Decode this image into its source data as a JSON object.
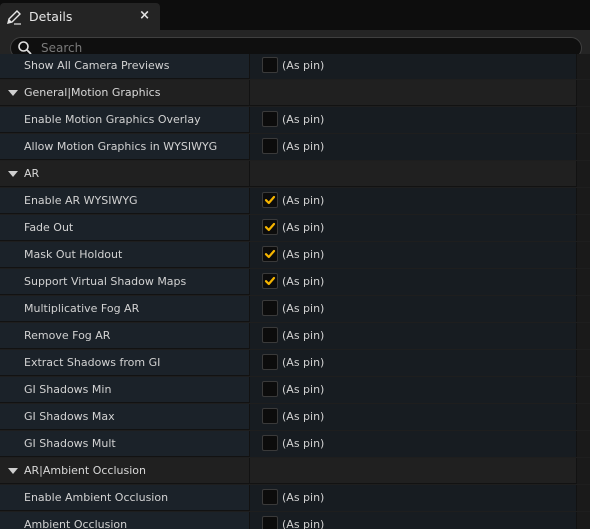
{
  "tab": {
    "title": "Details",
    "icon": "pencil-icon",
    "close": "×"
  },
  "search": {
    "placeholder": "Search",
    "value": ""
  },
  "accent_color": "#f5b400",
  "rows": [
    {
      "type": "prop",
      "label": "Show All Camera Previews",
      "checked": false,
      "value_label": "(As pin)"
    },
    {
      "type": "cat",
      "label": "General|Motion Graphics"
    },
    {
      "type": "prop",
      "label": "Enable Motion Graphics Overlay",
      "checked": false,
      "value_label": "(As pin)"
    },
    {
      "type": "prop",
      "label": "Allow Motion Graphics in WYSIWYG",
      "checked": false,
      "value_label": "(As pin)"
    },
    {
      "type": "cat",
      "label": "AR"
    },
    {
      "type": "prop",
      "label": "Enable AR WYSIWYG",
      "checked": true,
      "value_label": "(As pin)"
    },
    {
      "type": "prop",
      "label": "Fade Out",
      "checked": true,
      "value_label": "(As pin)"
    },
    {
      "type": "prop",
      "label": "Mask Out Holdout",
      "checked": true,
      "value_label": "(As pin)"
    },
    {
      "type": "prop",
      "label": "Support Virtual Shadow Maps",
      "checked": true,
      "value_label": "(As pin)"
    },
    {
      "type": "prop",
      "label": "Multiplicative Fog AR",
      "checked": false,
      "value_label": "(As pin)"
    },
    {
      "type": "prop",
      "label": "Remove Fog AR",
      "checked": false,
      "value_label": "(As pin)"
    },
    {
      "type": "prop",
      "label": "Extract Shadows from GI",
      "checked": false,
      "value_label": "(As pin)"
    },
    {
      "type": "prop",
      "label": "GI Shadows Min",
      "checked": false,
      "value_label": "(As pin)"
    },
    {
      "type": "prop",
      "label": "GI Shadows Max",
      "checked": false,
      "value_label": "(As pin)"
    },
    {
      "type": "prop",
      "label": "GI Shadows Mult",
      "checked": false,
      "value_label": "(As pin)"
    },
    {
      "type": "cat",
      "label": "AR|Ambient Occlusion"
    },
    {
      "type": "prop",
      "label": "Enable Ambient Occlusion",
      "checked": false,
      "value_label": "(As pin)"
    },
    {
      "type": "prop",
      "label": "Ambient Occlusion",
      "checked": false,
      "value_label": "(As pin)"
    }
  ]
}
